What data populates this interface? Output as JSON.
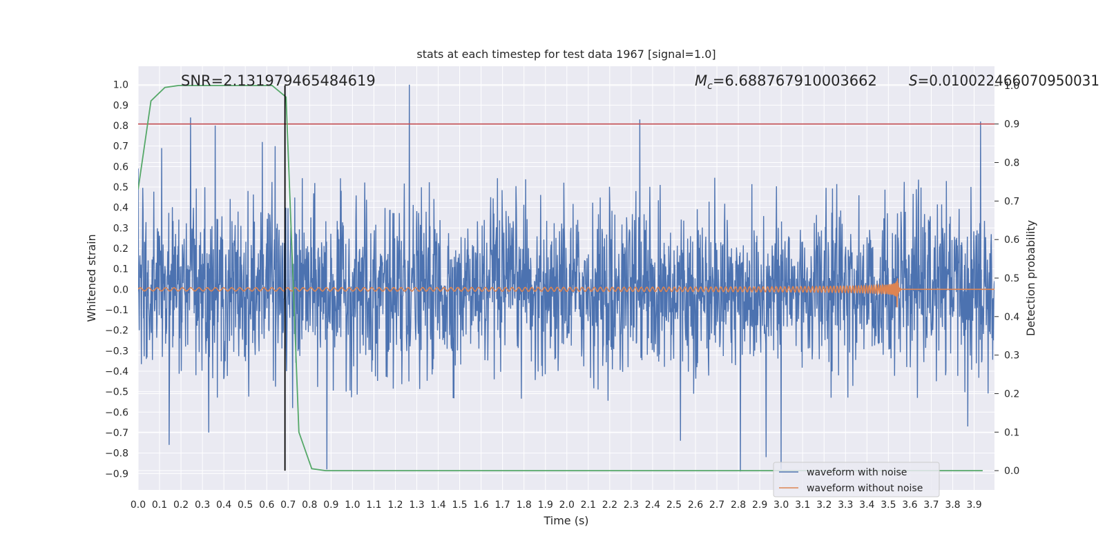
{
  "chart_data": {
    "type": "line",
    "title": "stats at each timestep for test data 1967 [signal=1.0]",
    "xlabel": "Time (s)",
    "ylabel": "Whitened strain",
    "y2label": "Detection probability",
    "xlim": [
      0.0,
      3.995
    ],
    "ylim": [
      -0.98,
      1.09
    ],
    "y2lim": [
      -0.05,
      1.05
    ],
    "xticks": [
      0.0,
      0.1,
      0.2,
      0.3,
      0.4,
      0.5,
      0.6,
      0.7,
      0.8,
      0.9,
      1.0,
      1.1,
      1.2,
      1.3,
      1.4,
      1.5,
      1.6,
      1.7,
      1.8,
      1.9,
      2.0,
      2.1,
      2.2,
      2.3,
      2.4,
      2.5,
      2.6,
      2.7,
      2.8,
      2.9,
      3.0,
      3.1,
      3.2,
      3.3,
      3.4,
      3.5,
      3.6,
      3.7,
      3.8,
      3.9
    ],
    "xtick_labels": [
      "0.0",
      "0.1",
      "0.2",
      "0.3",
      "0.4",
      "0.5",
      "0.6",
      "0.7",
      "0.8",
      "0.9",
      "1.0",
      "1.1",
      "1.2",
      "1.3",
      "1.4",
      "1.5",
      "1.6",
      "1.7",
      "1.8",
      "1.9",
      "2.0",
      "2.1",
      "2.2",
      "2.3",
      "2.4",
      "2.5",
      "2.6",
      "2.7",
      "2.8",
      "2.9",
      "3.0",
      "3.1",
      "3.2",
      "3.3",
      "3.4",
      "3.5",
      "3.6",
      "3.7",
      "3.8",
      "3.9"
    ],
    "yticks": [
      1.0,
      0.9,
      0.8,
      0.7,
      0.6,
      0.5,
      0.4,
      0.3,
      0.2,
      0.1,
      0.0,
      -0.1,
      -0.2,
      -0.3,
      -0.4,
      -0.5,
      -0.6,
      -0.7,
      -0.8,
      -0.9
    ],
    "ytick_labels": [
      "1.0",
      "0.9",
      "0.8",
      "0.7",
      "0.6",
      "0.5",
      "0.4",
      "0.3",
      "0.2",
      "0.1",
      "0.0",
      "−0.1",
      "−0.2",
      "−0.3",
      "−0.4",
      "−0.5",
      "−0.6",
      "−0.7",
      "−0.8",
      "−0.9"
    ],
    "y2ticks": [
      1.0,
      0.9,
      0.8,
      0.7,
      0.6,
      0.5,
      0.4,
      0.3,
      0.2,
      0.1,
      0.0
    ],
    "y2tick_labels": [
      "1.0",
      "0.9",
      "0.8",
      "0.7",
      "0.6",
      "0.5",
      "0.4",
      "0.3",
      "0.2",
      "0.1",
      "0.0"
    ],
    "annotations": {
      "snr": "SNR=2.131979465484619",
      "mc_symbol": "M",
      "mc_subscript": "c",
      "mc_value": "=6.688767910003662",
      "s_symbol": "S",
      "s_value": "=0.010022466070950031"
    },
    "threshold_line": {
      "axis": "right",
      "value": 0.9,
      "color": "#c44e52"
    },
    "marker_line": {
      "x": 0.685,
      "color": "#000000"
    },
    "series": [
      {
        "name": "waveform with noise",
        "axis": "left",
        "color": "#4c72b0",
        "description": "dense noise trace, approx amplitude ±0.45 with spikes",
        "peaks": [
          {
            "x": 0.0,
            "y": 0.59
          },
          {
            "x": 0.11,
            "y": 0.69
          },
          {
            "x": 0.145,
            "y": -0.76
          },
          {
            "x": 0.245,
            "y": 0.84
          },
          {
            "x": 0.36,
            "y": 0.8
          },
          {
            "x": 0.33,
            "y": -0.7
          },
          {
            "x": 0.58,
            "y": 0.72
          },
          {
            "x": 0.64,
            "y": 0.7
          },
          {
            "x": 0.72,
            "y": -0.58
          },
          {
            "x": 0.88,
            "y": -0.88
          },
          {
            "x": 1.265,
            "y": 1.0
          },
          {
            "x": 2.34,
            "y": 0.83
          },
          {
            "x": 2.53,
            "y": -0.74
          },
          {
            "x": 2.81,
            "y": -0.89
          },
          {
            "x": 2.93,
            "y": -0.82
          },
          {
            "x": 3.0,
            "y": -0.88
          },
          {
            "x": 3.93,
            "y": 0.82
          },
          {
            "x": 3.87,
            "y": -0.67
          }
        ]
      },
      {
        "name": "waveform without noise",
        "axis": "left",
        "color": "#dd8452",
        "description": "chirp signal, amplitude grows to ~0.1 at merger near 3.54 s then flat zero"
      },
      {
        "name": "detection probability",
        "axis": "right",
        "color": "#55a868",
        "x": [
          0.0,
          0.06,
          0.125,
          0.19,
          0.25,
          0.31,
          0.375,
          0.44,
          0.5,
          0.56,
          0.625,
          0.69,
          0.75,
          0.81,
          0.875,
          0.94,
          1.0,
          2.0,
          3.0,
          3.94
        ],
        "y": [
          0.73,
          0.96,
          0.995,
          1.0,
          1.0,
          1.0,
          1.0,
          1.0,
          1.0,
          1.0,
          1.0,
          0.97,
          0.1,
          0.005,
          0.0,
          0.0,
          0.0,
          0.0,
          0.0,
          0.0
        ]
      }
    ],
    "legend": {
      "location": "lower-right",
      "entries": [
        {
          "label": "waveform with noise",
          "color": "#4c72b0"
        },
        {
          "label": "waveform without noise",
          "color": "#dd8452"
        }
      ]
    },
    "style": {
      "background": "#eaeaf2",
      "grid": "#ffffff"
    }
  }
}
